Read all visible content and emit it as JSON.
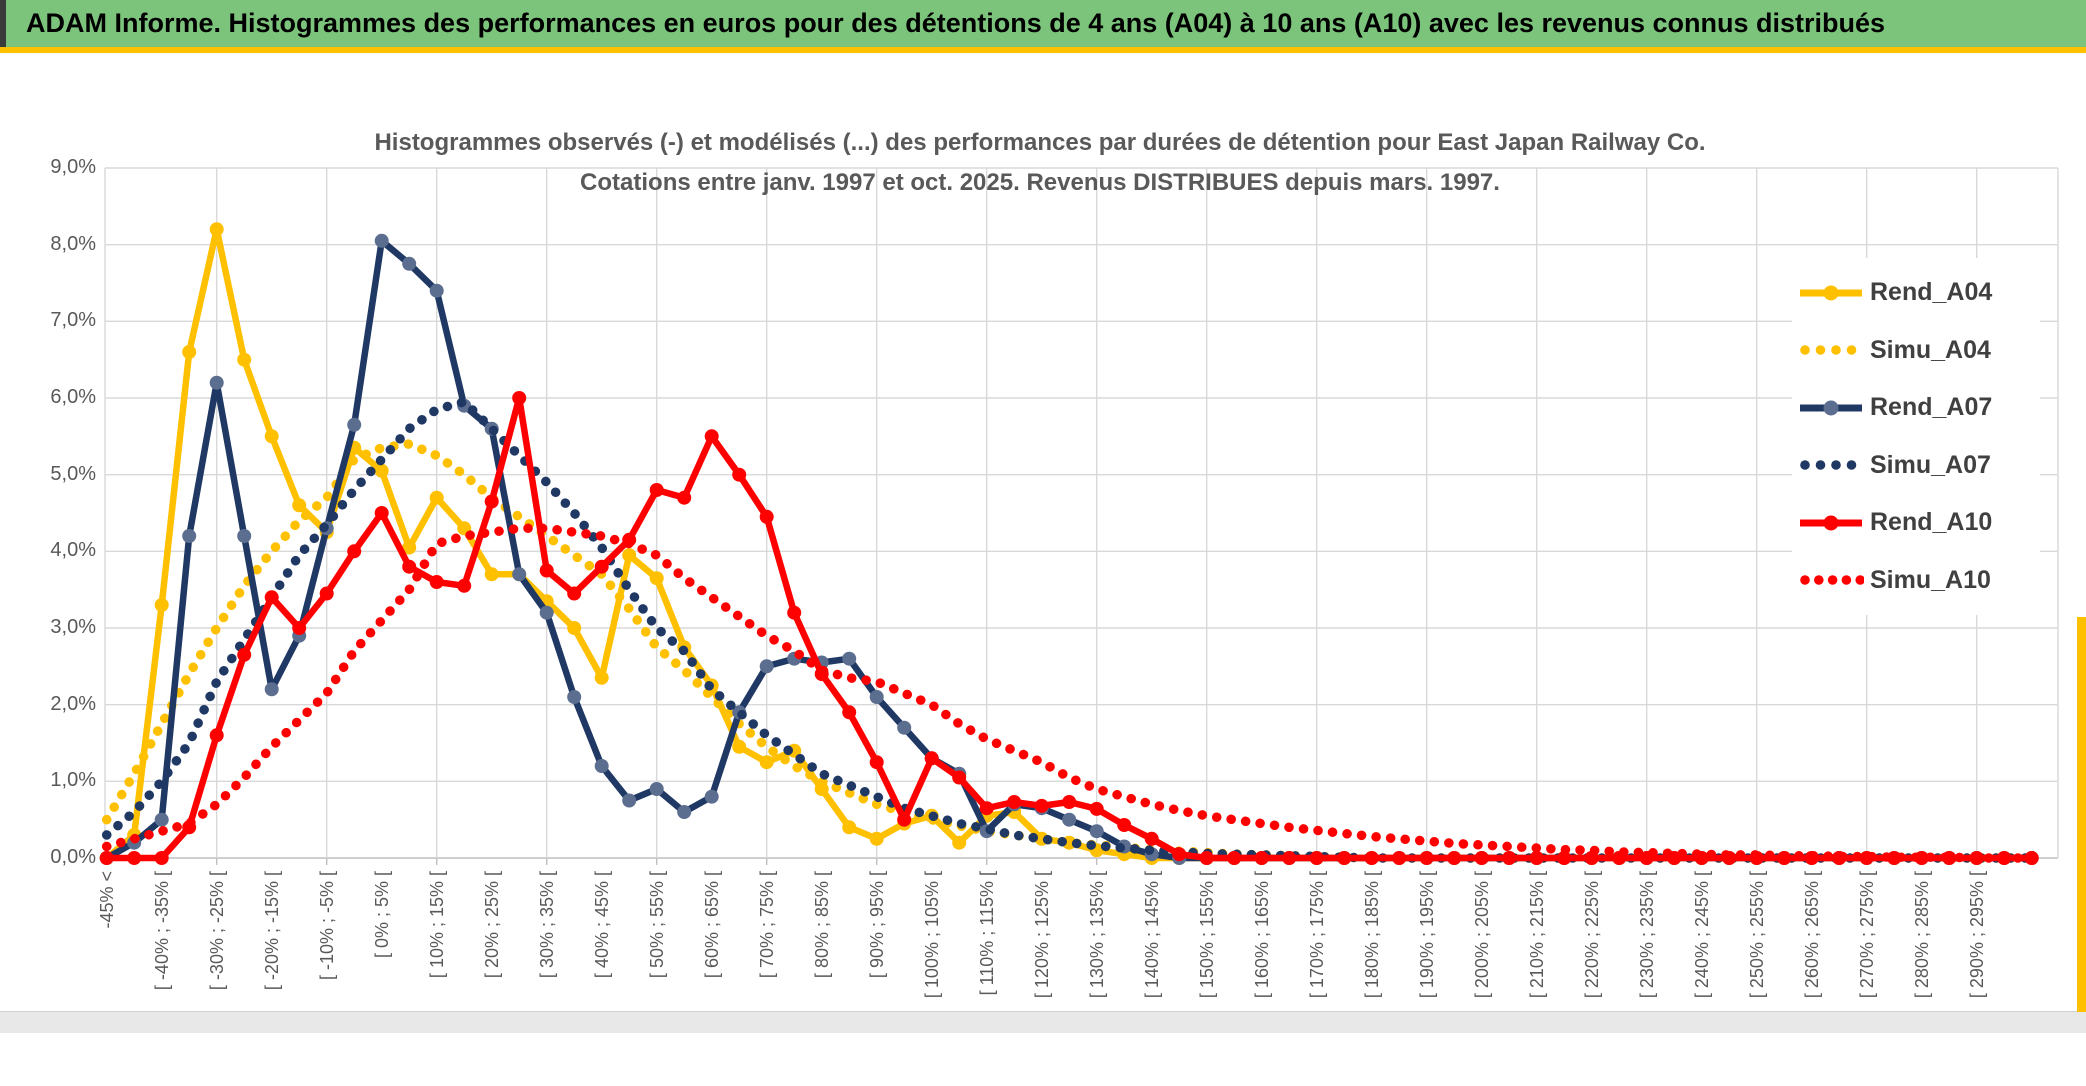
{
  "header": {
    "title": "ADAM Informe. Histogrammes des performances en euros pour des détentions de 4 ans (A04) à 10 ans (A10) avec les revenus connus distribués"
  },
  "palette": {
    "banner_green": "#7CC47C",
    "accent_gold": "#FFC000",
    "navy": "#1F3864",
    "navy_marker": "#5B6E8F",
    "red": "#FF0000",
    "gridline": "#D9D9D9",
    "axis_text": "#595959"
  },
  "chart_data": {
    "type": "line",
    "title_line1": "Histogrammes observés (-) et modélisés (...) des performances par durées de détention pour East Japan Railway Co.",
    "title_line2": "Cotations entre janv. 1997 et oct. 2025. Revenus DISTRIBUES depuis mars. 1997.",
    "ylabel": "",
    "ylim": [
      0,
      9
    ],
    "grid": true,
    "legend_position": "right",
    "y_ticks": [
      "0,0%",
      "1,0%",
      "2,0%",
      "3,0%",
      "4,0%",
      "5,0%",
      "6,0%",
      "7,0%",
      "8,0%",
      "9,0%"
    ],
    "n_points": 71,
    "x_tick_every": 2,
    "x_tick_labels": [
      "-45% <",
      "[ -40% ; -35% [",
      "[ -30% ; -25% [",
      "[ -20% ; -15% [",
      "[ -10% ; -5% [",
      "[ 0% ; 5% [",
      "[ 10% ; 15% [",
      "[ 20% ; 25% [",
      "[ 30% ; 35% [",
      "[ 40% ; 45% [",
      "[ 50% ; 55% [",
      "[ 60% ; 65% [",
      "[ 70% ; 75% [",
      "[ 80% ; 85% [",
      "[ 90% ; 95% [",
      "[ 100% ; 105% [",
      "[ 110% ; 115% [",
      "[ 120% ; 125% [",
      "[ 130% ; 135% [",
      "[ 140% ; 145% [",
      "[ 150% ; 155% [",
      "[ 160% ; 165% [",
      "[ 170% ; 175% [",
      "[ 180% ; 185% [",
      "[ 190% ; 195% [",
      "[ 200% ; 205% [",
      "[ 210% ; 215% [",
      "[ 220% ; 225% [",
      "[ 230% ; 235% [",
      "[ 240% ; 245% [",
      "[ 250% ; 255% [",
      "[ 260% ; 265% [",
      "[ 270% ; 275% [",
      "[ 280% ; 285% [",
      "[ 290% ; 295% ["
    ],
    "series": [
      {
        "name": "Rend_A04",
        "style": "solid",
        "color": "#FFC000",
        "marker_color": "#FFC000",
        "legend_dots": 0,
        "values": [
          0,
          0.3,
          3.3,
          6.6,
          8.2,
          6.5,
          5.5,
          4.6,
          4.25,
          5.35,
          5.05,
          4.05,
          4.7,
          4.3,
          3.7,
          3.7,
          3.35,
          3,
          2.35,
          3.95,
          3.65,
          2.75,
          2.25,
          1.45,
          1.25,
          1.4,
          0.9,
          0.4,
          0.25,
          0.45,
          0.55,
          0.2,
          0.55,
          0.6,
          0.25,
          0.2,
          0.1,
          0.05,
          0,
          0,
          0,
          0,
          0,
          0,
          0,
          0,
          0,
          0,
          0,
          0,
          0,
          0,
          0,
          0,
          0,
          0,
          0,
          0,
          0,
          0,
          0,
          0,
          0,
          0,
          0,
          0,
          0,
          0,
          0,
          0,
          0
        ]
      },
      {
        "name": "Simu_A04",
        "style": "dotted",
        "color": "#FFC000",
        "marker_color": "#FFC000",
        "legend_dots": 4,
        "values": [
          0.5,
          1.1,
          1.75,
          2.4,
          3,
          3.55,
          4,
          4.4,
          4.7,
          5.2,
          5.35,
          5.4,
          5.25,
          5,
          4.7,
          4.45,
          4.2,
          3.95,
          3.7,
          3.25,
          2.75,
          2.45,
          2.1,
          1.75,
          1.45,
          1.2,
          1,
          0.85,
          0.7,
          0.6,
          0.5,
          0.42,
          0.35,
          0.3,
          0.25,
          0.2,
          0.17,
          0.14,
          0.11,
          0.09,
          0.07,
          0.05,
          0.04,
          0.03,
          0.02,
          0.01,
          0,
          0,
          0,
          0,
          0,
          0,
          0,
          0,
          0,
          0,
          0,
          0,
          0,
          0,
          0,
          0,
          0,
          0,
          0,
          0,
          0,
          0,
          0,
          0,
          0
        ]
      },
      {
        "name": "Rend_A07",
        "style": "solid",
        "color": "#1F3864",
        "marker_color": "#5B6E8F",
        "legend_dots": 0,
        "values": [
          0,
          0.2,
          0.5,
          4.2,
          6.2,
          4.2,
          2.2,
          2.9,
          4.3,
          5.65,
          8.05,
          7.75,
          7.4,
          5.9,
          5.6,
          3.7,
          3.2,
          2.1,
          1.2,
          0.75,
          0.9,
          0.6,
          0.8,
          1.9,
          2.5,
          2.6,
          2.55,
          2.6,
          2.1,
          1.7,
          1.3,
          1.1,
          0.35,
          0.7,
          0.65,
          0.5,
          0.35,
          0.15,
          0.05,
          0,
          0,
          0,
          0,
          0,
          0,
          0,
          0,
          0,
          0,
          0,
          0,
          0,
          0,
          0,
          0,
          0,
          0,
          0,
          0,
          0,
          0,
          0,
          0,
          0,
          0,
          0,
          0,
          0,
          0,
          0,
          0
        ]
      },
      {
        "name": "Simu_A07",
        "style": "dotted",
        "color": "#1F3864",
        "marker_color": "#1F3864",
        "legend_dots": 4,
        "values": [
          0.3,
          0.6,
          1,
          1.5,
          2.3,
          2.85,
          3.4,
          3.95,
          4.35,
          4.8,
          5.2,
          5.6,
          5.85,
          5.95,
          5.6,
          5.25,
          4.9,
          4.5,
          4.05,
          3.5,
          3,
          2.7,
          2.2,
          1.9,
          1.6,
          1.35,
          1.1,
          0.95,
          0.8,
          0.65,
          0.55,
          0.45,
          0.38,
          0.3,
          0.25,
          0.2,
          0.16,
          0.13,
          0.1,
          0.08,
          0.06,
          0.05,
          0.04,
          0.03,
          0.02,
          0.01,
          0,
          0,
          0,
          0,
          0,
          0,
          0,
          0,
          0,
          0,
          0,
          0,
          0,
          0,
          0,
          0,
          0,
          0,
          0,
          0,
          0,
          0,
          0,
          0,
          0
        ]
      },
      {
        "name": "Rend_A10",
        "style": "solid",
        "color": "#FF0000",
        "marker_color": "#FF0000",
        "legend_dots": 0,
        "values": [
          0,
          0,
          0,
          0.4,
          1.6,
          2.65,
          3.4,
          3,
          3.45,
          4,
          4.5,
          3.8,
          3.6,
          3.55,
          4.65,
          6,
          3.75,
          3.45,
          3.8,
          4.15,
          4.8,
          4.7,
          5.5,
          5,
          4.45,
          3.2,
          2.4,
          1.9,
          1.25,
          0.5,
          1.3,
          1.05,
          0.65,
          0.73,
          0.68,
          0.73,
          0.64,
          0.43,
          0.25,
          0.05,
          0,
          0,
          0,
          0,
          0,
          0,
          0,
          0,
          0,
          0,
          0,
          0,
          0,
          0,
          0,
          0,
          0,
          0,
          0,
          0,
          0,
          0,
          0,
          0,
          0,
          0,
          0,
          0,
          0,
          0,
          0
        ]
      },
      {
        "name": "Simu_A10",
        "style": "dotted",
        "color": "#FF0000",
        "marker_color": "#FF0000",
        "legend_dots": 5,
        "values": [
          0.15,
          0.25,
          0.35,
          0.45,
          0.7,
          1.05,
          1.45,
          1.8,
          2.15,
          2.7,
          3.1,
          3.5,
          4.1,
          4.2,
          4.25,
          4.3,
          4.3,
          4.25,
          4.2,
          4.1,
          3.95,
          3.65,
          3.4,
          3.15,
          2.9,
          2.7,
          2.45,
          2.35,
          2.3,
          2.15,
          2,
          1.75,
          1.55,
          1.4,
          1.25,
          1.05,
          0.9,
          0.8,
          0.7,
          0.62,
          0.55,
          0.5,
          0.45,
          0.4,
          0.36,
          0.32,
          0.28,
          0.25,
          0.22,
          0.19,
          0.17,
          0.15,
          0.13,
          0.11,
          0.1,
          0.08,
          0.07,
          0.06,
          0.05,
          0.04,
          0.04,
          0.03,
          0.03,
          0.02,
          0.02,
          0.01,
          0.01,
          0.01,
          0,
          0,
          0
        ]
      }
    ]
  }
}
